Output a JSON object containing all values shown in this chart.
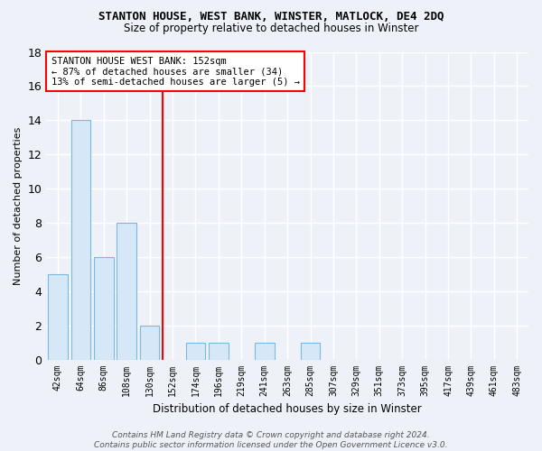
{
  "title": "STANTON HOUSE, WEST BANK, WINSTER, MATLOCK, DE4 2DQ",
  "subtitle": "Size of property relative to detached houses in Winster",
  "xlabel": "Distribution of detached houses by size in Winster",
  "ylabel": "Number of detached properties",
  "categories": [
    "42sqm",
    "64sqm",
    "86sqm",
    "108sqm",
    "130sqm",
    "152sqm",
    "174sqm",
    "196sqm",
    "219sqm",
    "241sqm",
    "263sqm",
    "285sqm",
    "307sqm",
    "329sqm",
    "351sqm",
    "373sqm",
    "395sqm",
    "417sqm",
    "439sqm",
    "461sqm",
    "483sqm"
  ],
  "values": [
    5,
    14,
    6,
    8,
    2,
    0,
    1,
    1,
    0,
    1,
    0,
    1,
    0,
    0,
    0,
    0,
    0,
    0,
    0,
    0,
    0
  ],
  "bar_color": "#d6e8f7",
  "bar_edge_color": "#7ab8e0",
  "red_line_index": 5,
  "annotation_text_line1": "STANTON HOUSE WEST BANK: 152sqm",
  "annotation_text_line2": "← 87% of detached houses are smaller (34)",
  "annotation_text_line3": "13% of semi-detached houses are larger (5) →",
  "ylim": [
    0,
    18
  ],
  "yticks": [
    0,
    2,
    4,
    6,
    8,
    10,
    12,
    14,
    16,
    18
  ],
  "footer_line1": "Contains HM Land Registry data © Crown copyright and database right 2024.",
  "footer_line2": "Contains public sector information licensed under the Open Government Licence v3.0.",
  "bg_color": "#eef2f8",
  "grid_color": "#ffffff",
  "title_fontsize": 9,
  "subtitle_fontsize": 8.5,
  "annotation_fontsize": 7.5,
  "ylabel_fontsize": 8,
  "xlabel_fontsize": 8.5,
  "footer_fontsize": 6.5
}
